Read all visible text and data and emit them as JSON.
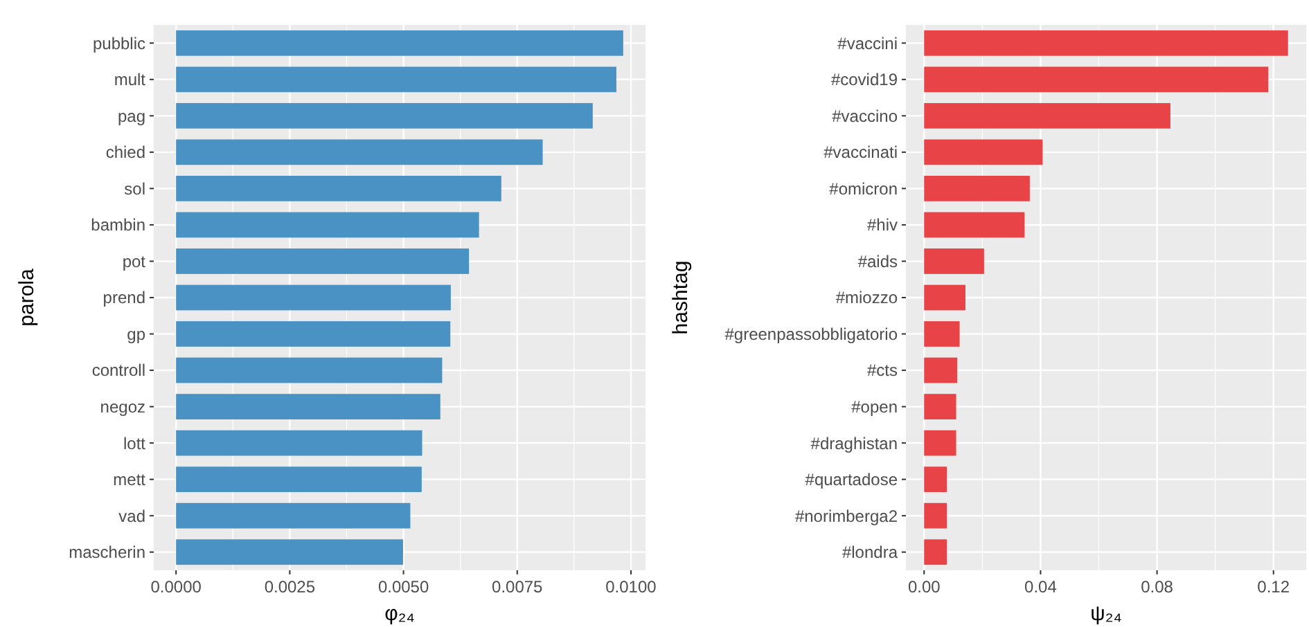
{
  "chart_data": [
    {
      "type": "bar",
      "orientation": "horizontal",
      "xlabel": "φ₂₄",
      "ylabel": "parola",
      "categories": [
        "pubblic",
        "mult",
        "pag",
        "chied",
        "sol",
        "bambin",
        "pot",
        "prend",
        "gp",
        "controll",
        "negoz",
        "lott",
        "mett",
        "vad",
        "mascherin"
      ],
      "series": [
        {
          "color": "#4a92c4",
          "values": [
            0.00983,
            0.00968,
            0.00916,
            0.00806,
            0.00715,
            0.00666,
            0.00644,
            0.00604,
            0.00603,
            0.00585,
            0.00581,
            0.00541,
            0.0054,
            0.00515,
            0.00499
          ]
        }
      ],
      "xlim": [
        -0.00049,
        0.01032
      ],
      "xticks": [
        {
          "value": 0,
          "label": "0.0000"
        },
        {
          "value": 0.0025,
          "label": "0.0025"
        },
        {
          "value": 0.005,
          "label": "0.0050"
        },
        {
          "value": 0.0075,
          "label": "0.0075"
        },
        {
          "value": 0.01,
          "label": "0.0100"
        }
      ],
      "grid": true
    },
    {
      "type": "bar",
      "orientation": "horizontal",
      "xlabel": "ψ₂₄",
      "ylabel": "hashtag",
      "categories": [
        "#vaccini",
        "#covid19",
        "#vaccino",
        "#vaccinati",
        "#omicron",
        "#hiv",
        "#aids",
        "#miozzo",
        "#greenpassobbligatorio",
        "#cts",
        "#open",
        "#draghistan",
        "#quartadose",
        "#norimberga2",
        "#londra"
      ],
      "series": [
        {
          "color": "#e84447",
          "values": [
            0.125,
            0.1182,
            0.0846,
            0.0407,
            0.0363,
            0.0345,
            0.0206,
            0.0142,
            0.0122,
            0.0114,
            0.011,
            0.011,
            0.0078,
            0.0078,
            0.0078
          ]
        }
      ],
      "xlim": [
        -0.00625,
        0.13125
      ],
      "xticks": [
        {
          "value": 0,
          "label": "0.00"
        },
        {
          "value": 0.04,
          "label": "0.04"
        },
        {
          "value": 0.08,
          "label": "0.08"
        },
        {
          "value": 0.12,
          "label": "0.12"
        }
      ],
      "grid": true
    }
  ]
}
